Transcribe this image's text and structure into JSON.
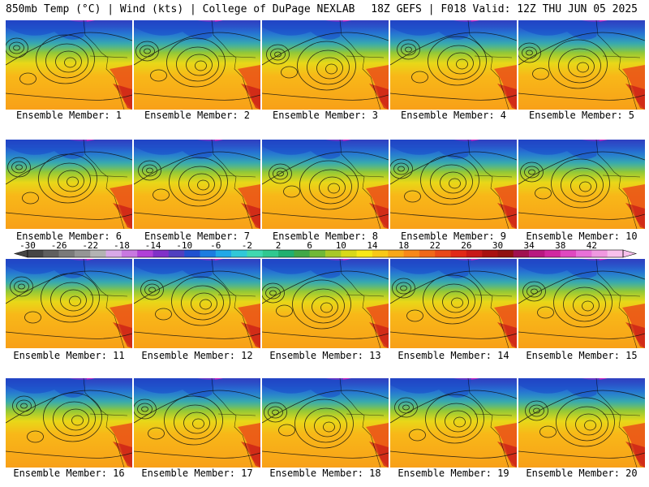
{
  "header": {
    "left": "850mb Temp (°C) | Wind (kts) | College of DuPage NEXLAB",
    "right": "18Z GEFS | F018 Valid: 12Z THU JUN 05 2025"
  },
  "colorbar": {
    "tick_labels": [
      "-30",
      "-26",
      "-22",
      "-18",
      "-14",
      "-10",
      "-6",
      "-2",
      "2",
      "6",
      "10",
      "14",
      "18",
      "22",
      "26",
      "30",
      "34",
      "38",
      "42"
    ],
    "colors": [
      "#454545",
      "#5f5f5f",
      "#7a7a7a",
      "#959595",
      "#b3b3b3",
      "#d8a8e8",
      "#c878e0",
      "#b040d8",
      "#8030c8",
      "#5040c0",
      "#2050d0",
      "#1c7ce0",
      "#20a8e8",
      "#30c8d8",
      "#40d8b0",
      "#30c890",
      "#20b070",
      "#40a848",
      "#70b838",
      "#a8c828",
      "#d8d818",
      "#f8e818",
      "#f8c818",
      "#f8a818",
      "#f88818",
      "#f06818",
      "#e84818",
      "#e02818",
      "#c81818",
      "#a81010",
      "#901010",
      "#a01050",
      "#b81880",
      "#d028a0",
      "#e048c0",
      "#e870d8",
      "#f098e0",
      "#f8c0ec"
    ]
  },
  "members": [
    {
      "label": "Ensemble Member: 1"
    },
    {
      "label": "Ensemble Member: 2"
    },
    {
      "label": "Ensemble Member: 3"
    },
    {
      "label": "Ensemble Member: 4"
    },
    {
      "label": "Ensemble Member: 5"
    },
    {
      "label": "Ensemble Member: 6"
    },
    {
      "label": "Ensemble Member: 7"
    },
    {
      "label": "Ensemble Member: 8"
    },
    {
      "label": "Ensemble Member: 9"
    },
    {
      "label": "Ensemble Member: 10"
    },
    {
      "label": "Ensemble Member: 11"
    },
    {
      "label": "Ensemble Member: 12"
    },
    {
      "label": "Ensemble Member: 13"
    },
    {
      "label": "Ensemble Member: 14"
    },
    {
      "label": "Ensemble Member: 15"
    },
    {
      "label": "Ensemble Member: 16"
    },
    {
      "label": "Ensemble Member: 17"
    },
    {
      "label": "Ensemble Member: 18"
    },
    {
      "label": "Ensemble Member: 19"
    },
    {
      "label": "Ensemble Member: 20"
    }
  ]
}
